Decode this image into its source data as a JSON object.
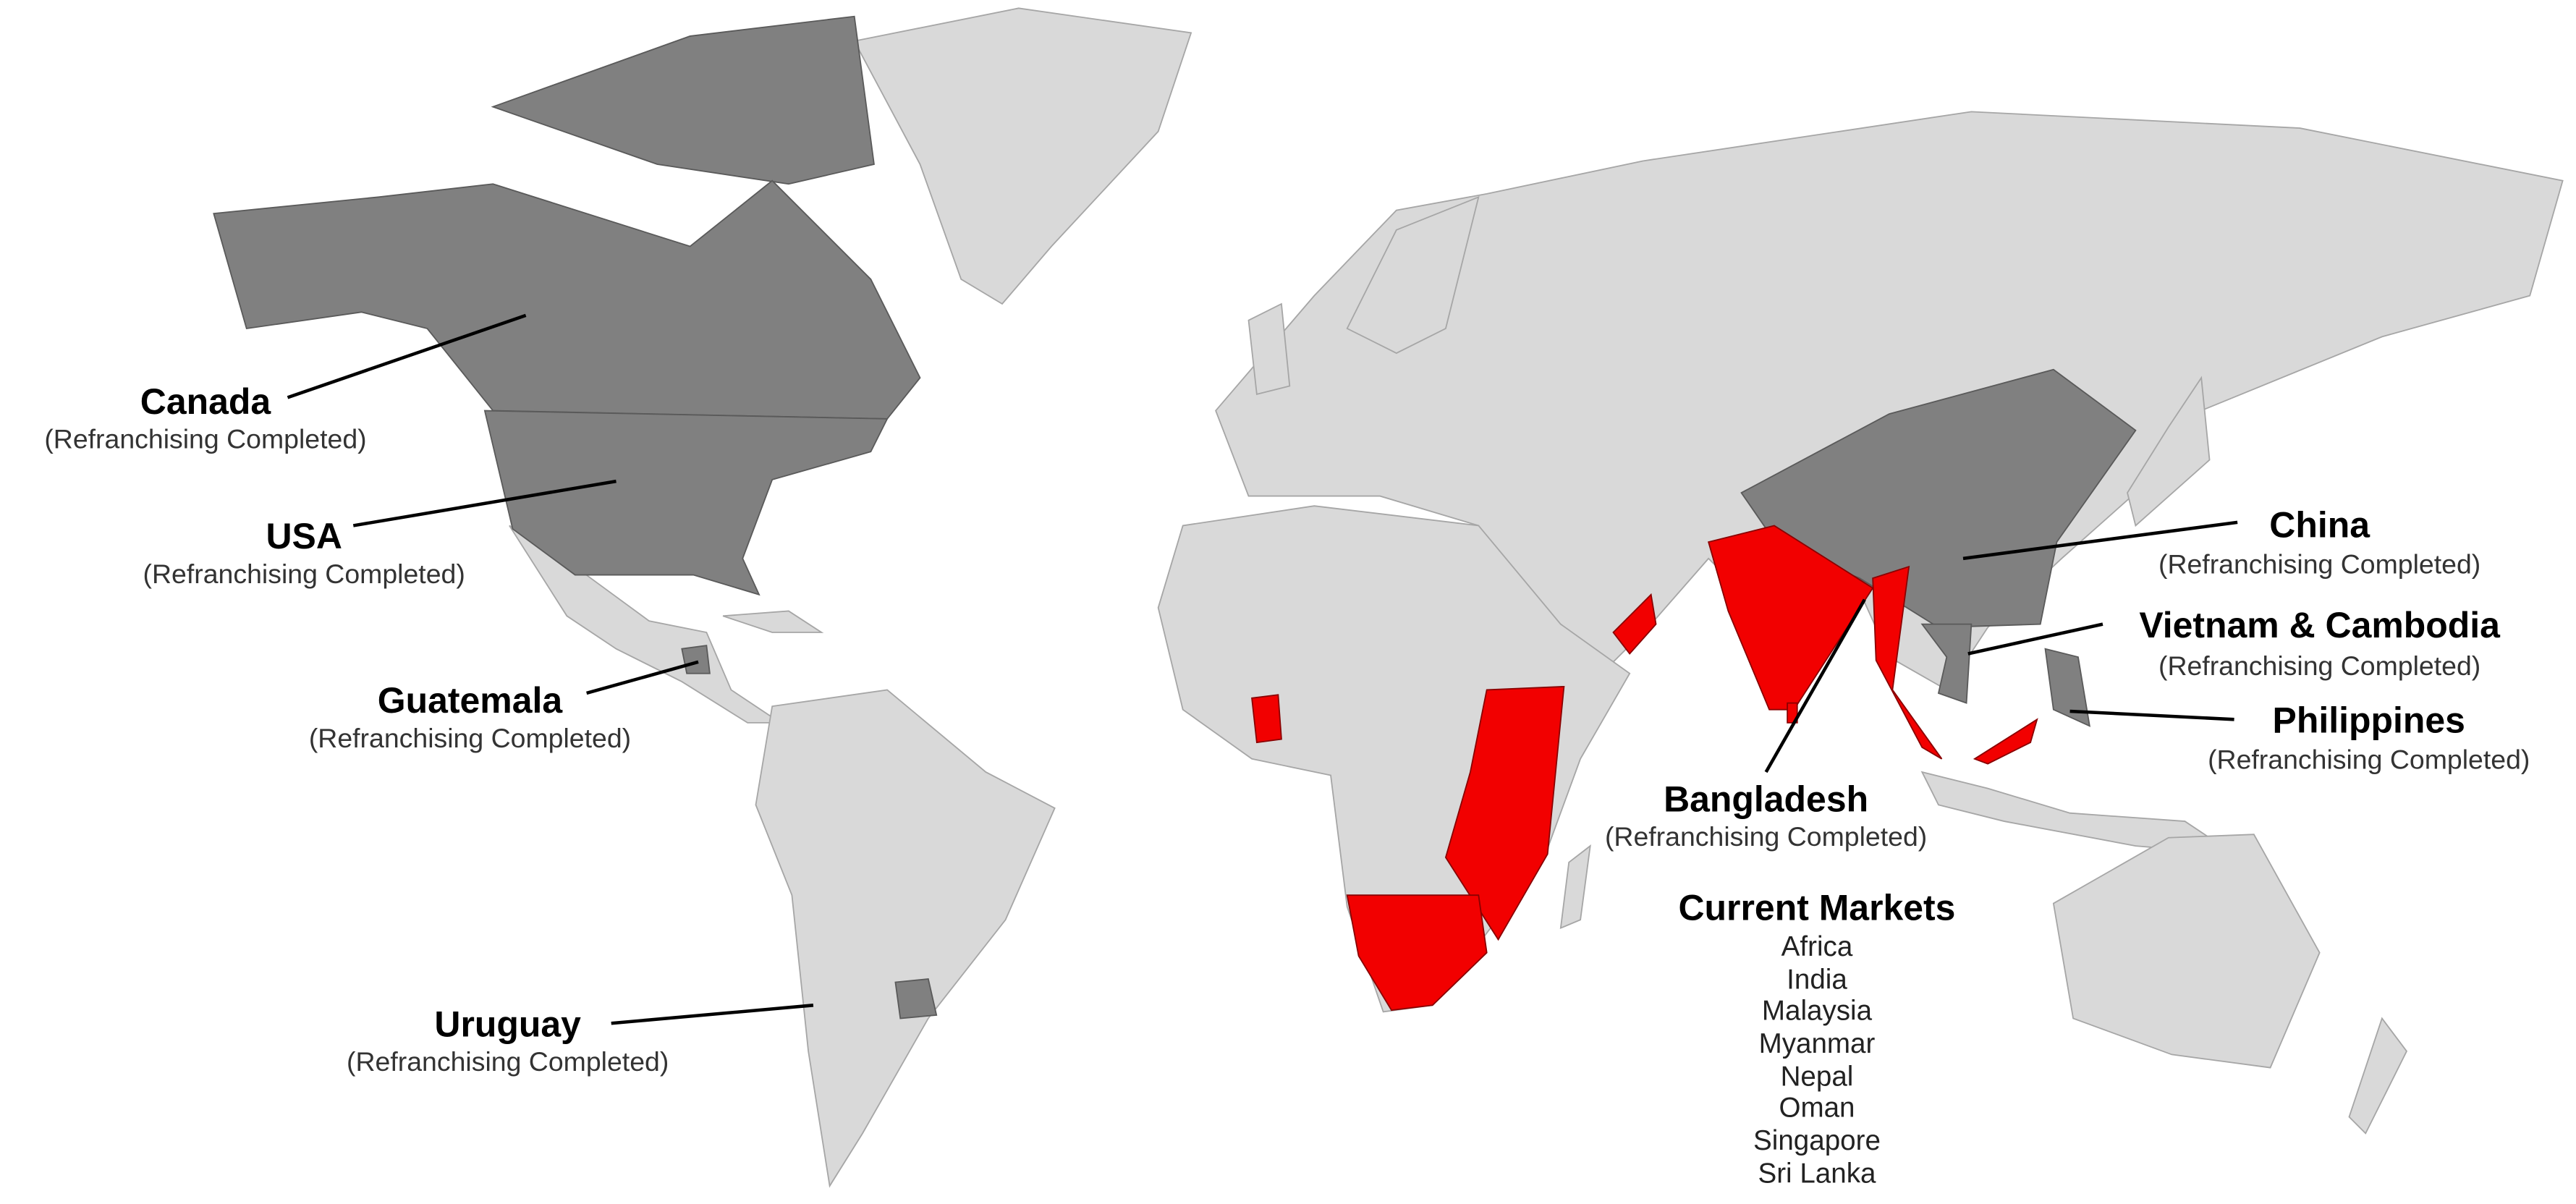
{
  "colors": {
    "background": "#ffffff",
    "other_land": "#d9d9d9",
    "refranchising_completed": "#808080",
    "current_market": "#f20000"
  },
  "labels": {
    "canada": {
      "name": "Canada",
      "status": "(Refranchising Completed)"
    },
    "usa": {
      "name": "USA",
      "status": "(Refranchising Completed)"
    },
    "guatemala": {
      "name": "Guatemala",
      "status": "(Refranchising Completed)"
    },
    "uruguay": {
      "name": "Uruguay",
      "status": "(Refranchising Completed)"
    },
    "china": {
      "name": "China",
      "status": "(Refranchising Completed)"
    },
    "vietnam_cambodia": {
      "name": "Vietnam & Cambodia",
      "status": "(Refranchising Completed)"
    },
    "philippines": {
      "name": "Philippines",
      "status": "(Refranchising Completed)"
    },
    "bangladesh": {
      "name": "Bangladesh",
      "status": "(Refranchising Completed)"
    }
  },
  "current_markets": {
    "title": "Current Markets",
    "items": [
      "Africa",
      "India",
      "Malaysia",
      "Myanmar",
      "Nepal",
      "Oman",
      "Singapore",
      "Sri Lanka"
    ]
  }
}
